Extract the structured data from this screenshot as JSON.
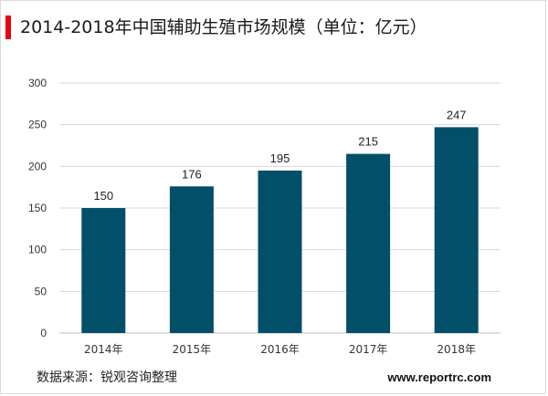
{
  "header": {
    "title": "2014-2018年中国辅助生殖市场规模（单位：亿元）"
  },
  "footer": {
    "source": "数据来源：锐观咨询整理",
    "website": "www.reportrc.com"
  },
  "colors": {
    "bar": "#024f6a",
    "accent": "#e60012",
    "grid": "#d9d9d9"
  },
  "chart_data": {
    "type": "bar",
    "title": "2014-2018年中国辅助生殖市场规模（单位：亿元）",
    "categories": [
      "2014年",
      "2015年",
      "2016年",
      "2017年",
      "2018年"
    ],
    "values": [
      150,
      176,
      195,
      215,
      247
    ],
    "data_labels": [
      "150",
      "176",
      "195",
      "215",
      "247"
    ],
    "ylim": [
      0,
      300
    ],
    "yticks": [
      "0",
      "50",
      "100",
      "150",
      "200",
      "250",
      "300"
    ],
    "grid": true,
    "legend": "none",
    "xlabel": "",
    "ylabel": ""
  }
}
